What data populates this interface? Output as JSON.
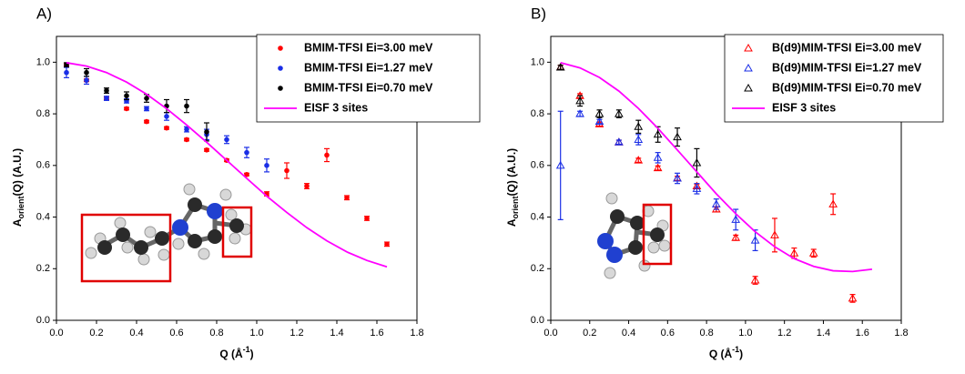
{
  "chart_data": [
    {
      "type": "scatter",
      "panel_label": "A)",
      "xlabel": {
        "text": "Q (Å",
        "sup": "-1",
        "rest": ")"
      },
      "ylabel": {
        "text": "A",
        "sub": "orient",
        "rest": "(Q) (A.U.)"
      },
      "xlim": [
        0,
        1.8
      ],
      "ylim": [
        0,
        1.1
      ],
      "xticks": [
        {
          "value": 0,
          "label": "0.0"
        },
        0.2,
        0.4,
        0.6,
        0.8,
        {
          "value": 1,
          "label": "1.0"
        },
        1.2,
        1.4,
        1.6,
        1.8
      ],
      "yticks": [
        {
          "value": 0,
          "label": "0.0"
        },
        0.2,
        0.4,
        0.6,
        0.8,
        {
          "value": 1,
          "label": "1.0"
        }
      ],
      "series": [
        {
          "name": "BMIM-TFSI Ei=3.00 meV",
          "color": "#ff0000",
          "marker": "circle",
          "x": [
            0.05,
            0.15,
            0.25,
            0.35,
            0.45,
            0.55,
            0.65,
            0.75,
            0.85,
            0.95,
            1.05,
            1.15,
            1.25,
            1.35,
            1.45,
            1.55,
            1.65
          ],
          "values": [
            0.99,
            0.93,
            0.86,
            0.82,
            0.77,
            0.745,
            0.7,
            0.66,
            0.62,
            0.565,
            0.49,
            0.58,
            0.52,
            0.64,
            0.475,
            0.395,
            0.295
          ],
          "errors": [
            0.005,
            0.005,
            0.005,
            0.005,
            0.005,
            0.005,
            0.005,
            0.005,
            0.005,
            0.005,
            0.008,
            0.03,
            0.01,
            0.025,
            0.008,
            0.008,
            0.008
          ]
        },
        {
          "name": "BMIM-TFSI Ei=1.27 meV",
          "color": "#1a2ee6",
          "marker": "circle",
          "x": [
            0.05,
            0.15,
            0.25,
            0.35,
            0.45,
            0.55,
            0.65,
            0.75,
            0.85,
            0.95,
            1.05
          ],
          "values": [
            0.96,
            0.93,
            0.86,
            0.85,
            0.82,
            0.79,
            0.74,
            0.72,
            0.7,
            0.65,
            0.6
          ],
          "errors": [
            0.02,
            0.015,
            0.008,
            0.008,
            0.008,
            0.015,
            0.01,
            0.02,
            0.015,
            0.02,
            0.025
          ]
        },
        {
          "name": "BMIM-TFSI Ei=0.70 meV",
          "color": "#000000",
          "marker": "circle",
          "x": [
            0.05,
            0.15,
            0.25,
            0.35,
            0.45,
            0.55,
            0.65,
            0.75
          ],
          "values": [
            0.99,
            0.96,
            0.89,
            0.87,
            0.86,
            0.83,
            0.83,
            0.73
          ],
          "errors": [
            0.008,
            0.015,
            0.01,
            0.015,
            0.015,
            0.025,
            0.025,
            0.035
          ]
        },
        {
          "name": "EISF 3 sites",
          "color": "#ff00ff",
          "marker": "line",
          "x": [
            0.05,
            0.15,
            0.25,
            0.35,
            0.45,
            0.55,
            0.65,
            0.75,
            0.85,
            0.95,
            1.05,
            1.15,
            1.25,
            1.35,
            1.45,
            1.55,
            1.65
          ],
          "values": [
            0.998,
            0.985,
            0.96,
            0.923,
            0.876,
            0.82,
            0.757,
            0.69,
            0.62,
            0.55,
            0.481,
            0.418,
            0.359,
            0.308,
            0.265,
            0.232,
            0.207
          ]
        }
      ]
    },
    {
      "type": "scatter",
      "panel_label": "B)",
      "xlabel": {
        "text": "Q (Å",
        "sup": "-1",
        "rest": ")"
      },
      "ylabel": {
        "text": "A",
        "sub": "orient",
        "rest": "(Q) (A.U.)"
      },
      "xlim": [
        0,
        1.8
      ],
      "ylim": [
        0,
        1.1
      ],
      "xticks": [
        {
          "value": 0,
          "label": "0.0"
        },
        0.2,
        0.4,
        0.6,
        0.8,
        {
          "value": 1,
          "label": "1.0"
        },
        1.2,
        1.4,
        1.6,
        1.8
      ],
      "yticks": [
        {
          "value": 0,
          "label": "0.0"
        },
        0.2,
        0.4,
        0.6,
        0.8,
        {
          "value": 1,
          "label": "1.0"
        }
      ],
      "series": [
        {
          "name": "B(d9)MIM-TFSI Ei=3.00 meV",
          "color": "#ff0000",
          "marker": "triangle-open",
          "x": [
            0.05,
            0.15,
            0.25,
            0.35,
            0.45,
            0.55,
            0.65,
            0.75,
            0.85,
            0.95,
            1.05,
            1.15,
            1.25,
            1.35,
            1.45,
            1.55
          ],
          "values": [
            0.98,
            0.87,
            0.76,
            0.69,
            0.62,
            0.59,
            0.55,
            0.52,
            0.43,
            0.32,
            0.155,
            0.33,
            0.26,
            0.26,
            0.45,
            0.085
          ],
          "errors": [
            0.008,
            0.008,
            0.008,
            0.008,
            0.008,
            0.008,
            0.008,
            0.008,
            0.01,
            0.01,
            0.015,
            0.065,
            0.02,
            0.015,
            0.04,
            0.015
          ]
        },
        {
          "name": "B(d9)MIM-TFSI Ei=1.27 meV",
          "color": "#1a2ee6",
          "marker": "triangle-open",
          "x": [
            0.05,
            0.15,
            0.25,
            0.35,
            0.45,
            0.55,
            0.65,
            0.75,
            0.85,
            0.95,
            1.05
          ],
          "values": [
            0.6,
            0.8,
            0.77,
            0.69,
            0.7,
            0.63,
            0.55,
            0.51,
            0.45,
            0.39,
            0.31
          ],
          "errors": [
            0.21,
            0.01,
            0.008,
            0.008,
            0.02,
            0.02,
            0.02,
            0.02,
            0.02,
            0.04,
            0.04
          ]
        },
        {
          "name": "B(d9)MIM-TFSI Ei=0.70 meV",
          "color": "#000000",
          "marker": "triangle-open",
          "x": [
            0.05,
            0.15,
            0.25,
            0.35,
            0.45,
            0.55,
            0.65,
            0.75
          ],
          "values": [
            0.98,
            0.85,
            0.8,
            0.8,
            0.75,
            0.72,
            0.71,
            0.61
          ],
          "errors": [
            0.008,
            0.02,
            0.015,
            0.015,
            0.025,
            0.03,
            0.035,
            0.055
          ]
        },
        {
          "name": "EISF 3 sites",
          "color": "#ff00ff",
          "marker": "line",
          "x": [
            0.05,
            0.15,
            0.25,
            0.35,
            0.45,
            0.55,
            0.65,
            0.75,
            0.85,
            0.95,
            1.05,
            1.15,
            1.25,
            1.35,
            1.45,
            1.55,
            1.65
          ],
          "values": [
            0.998,
            0.978,
            0.941,
            0.888,
            0.821,
            0.744,
            0.66,
            0.575,
            0.49,
            0.413,
            0.343,
            0.285,
            0.239,
            0.209,
            0.192,
            0.189,
            0.198
          ]
        }
      ]
    }
  ]
}
